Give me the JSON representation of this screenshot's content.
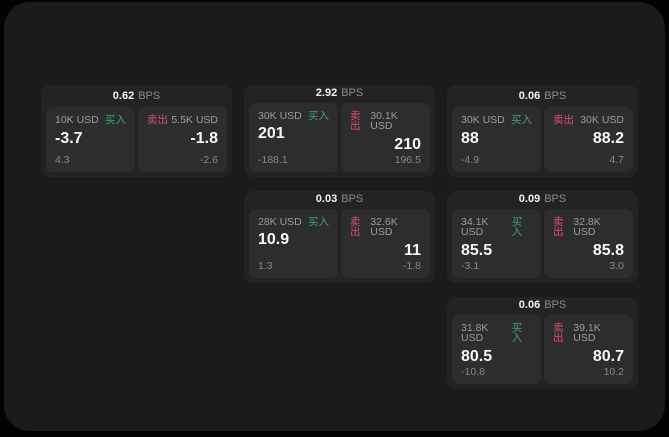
{
  "labels": {
    "bps_unit": "BPS",
    "buy": "买入",
    "sell": "卖出"
  },
  "colors": {
    "buy_green": "#3fa468",
    "sell_red": "#d8506b",
    "page_bg": "#1b1b1d",
    "card_bg": "#232325",
    "panel_bg": "#2d2d2f"
  },
  "cards": [
    {
      "bps": "0.62",
      "buy": {
        "amount": "10K USD",
        "value": "-3.7",
        "change": "4.3"
      },
      "sell": {
        "amount": "5.5K USD",
        "value": "-1.8",
        "change": "-2.6"
      }
    },
    {
      "bps": "2.92",
      "buy": {
        "amount": "30K USD",
        "value": "201",
        "change": "-188.1"
      },
      "sell": {
        "amount": "30.1K USD",
        "value": "210",
        "change": "196.5"
      }
    },
    {
      "bps": "0.06",
      "buy": {
        "amount": "30K USD",
        "value": "88",
        "change": "-4.9"
      },
      "sell": {
        "amount": "30K USD",
        "value": "88.2",
        "change": "4.7"
      }
    },
    {
      "bps": "0.03",
      "buy": {
        "amount": "28K USD",
        "value": "10.9",
        "change": "1.3"
      },
      "sell": {
        "amount": "32.6K USD",
        "value": "11",
        "change": "-1.8"
      }
    },
    {
      "bps": "0.09",
      "buy": {
        "amount": "34.1K USD",
        "value": "85.5",
        "change": "-3.1"
      },
      "sell": {
        "amount": "32.8K USD",
        "value": "85.8",
        "change": "3.0"
      }
    },
    {
      "bps": "0.06",
      "buy": {
        "amount": "31.8K USD",
        "value": "80.5",
        "change": "-10.8"
      },
      "sell": {
        "amount": "39.1K USD",
        "value": "80.7",
        "change": "10.2"
      }
    }
  ]
}
